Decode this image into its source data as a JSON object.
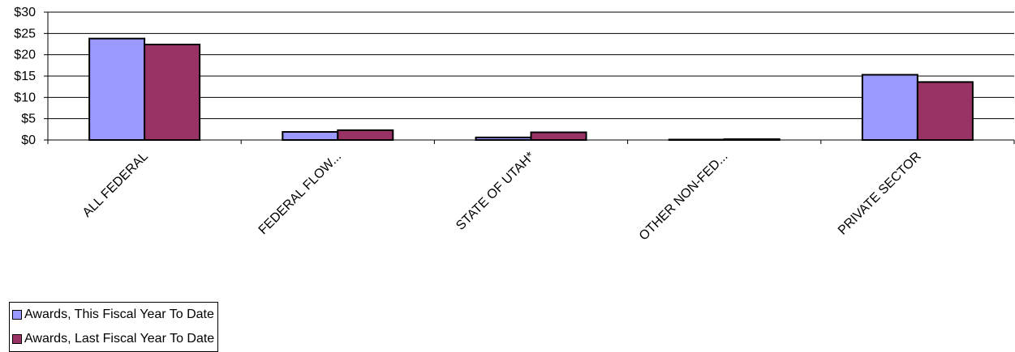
{
  "chart_data": {
    "type": "bar",
    "categories": [
      "ALL FEDERAL",
      "FEDERAL FLOW...",
      "STATE OF UTAH*",
      "OTHER NON-FED...",
      "PRIVATE SECTOR"
    ],
    "series": [
      {
        "name": "Awards, This Fiscal Year To Date",
        "color": "#9999ff",
        "values": [
          23.8,
          1.9,
          0.6,
          0.0,
          15.3
        ]
      },
      {
        "name": "Awards, Last Fiscal Year To Date",
        "color": "#993366",
        "values": [
          22.4,
          2.3,
          1.8,
          0.2,
          13.6
        ]
      }
    ],
    "ylim": [
      0,
      30
    ],
    "yticks": [
      "$0",
      "$5",
      "$10",
      "$15",
      "$20",
      "$25",
      "$30"
    ],
    "grid": true,
    "legend_position": "bottom-left"
  }
}
